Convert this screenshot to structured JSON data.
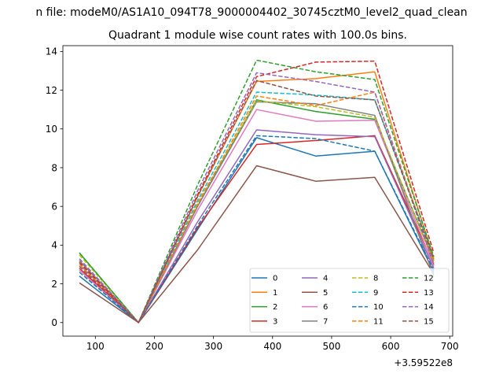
{
  "figure": {
    "suptitle": "n file: modeM0/AS1A10_094T78_9000004402_30745cztM0_level2_quad_clean",
    "background": "#ffffff"
  },
  "chart_data": {
    "type": "line",
    "title": "Quadrant 1 module wise count rates with 100.0s bins.",
    "xlabel": "",
    "ylabel": "",
    "x_offset_label": "+3.59522e8",
    "x": [
      73,
      173,
      273,
      373,
      473,
      573,
      673
    ],
    "xlim": [
      45,
      705
    ],
    "ylim": [
      -0.7,
      14.3
    ],
    "xticks": [
      100,
      200,
      300,
      400,
      500,
      600,
      700
    ],
    "xtick_labels": [
      "100",
      "200",
      "300",
      "400",
      "500",
      "600",
      "700"
    ],
    "yticks": [
      0,
      2,
      4,
      6,
      8,
      10,
      12,
      14
    ],
    "ytick_labels": [
      "0",
      "2",
      "4",
      "6",
      "8",
      "10",
      "12",
      "14"
    ],
    "grid": false,
    "legend": {
      "placement": "lower-right",
      "columns": 4
    },
    "series": [
      {
        "name": "0",
        "color": "#1f77b4",
        "dash": "solid",
        "values": [
          2.4,
          0.0,
          4.8,
          9.55,
          8.6,
          8.85,
          2.6
        ]
      },
      {
        "name": "1",
        "color": "#ff7f0e",
        "dash": "solid",
        "values": [
          3.2,
          0.0,
          6.5,
          12.45,
          12.6,
          12.95,
          3.3
        ]
      },
      {
        "name": "2",
        "color": "#2ca02c",
        "dash": "solid",
        "values": [
          3.6,
          0.0,
          6.0,
          11.5,
          10.9,
          10.5,
          3.2
        ]
      },
      {
        "name": "3",
        "color": "#d62728",
        "dash": "solid",
        "values": [
          2.8,
          0.0,
          4.9,
          9.2,
          9.4,
          9.65,
          3.0
        ]
      },
      {
        "name": "4",
        "color": "#9467bd",
        "dash": "solid",
        "values": [
          3.0,
          0.0,
          5.2,
          9.95,
          9.7,
          9.6,
          2.8
        ]
      },
      {
        "name": "5",
        "color": "#8c564b",
        "dash": "solid",
        "values": [
          2.05,
          0.0,
          3.75,
          8.1,
          7.3,
          7.5,
          2.5
        ]
      },
      {
        "name": "6",
        "color": "#e377c2",
        "dash": "solid",
        "values": [
          2.7,
          0.0,
          5.8,
          11.0,
          10.4,
          10.45,
          2.9
        ]
      },
      {
        "name": "7",
        "color": "#7f7f7f",
        "dash": "solid",
        "values": [
          3.2,
          0.0,
          6.0,
          11.4,
          11.3,
          10.7,
          2.4
        ]
      },
      {
        "name": "8",
        "color": "#bcbd22",
        "dash": "dashed",
        "values": [
          3.5,
          0.0,
          6.2,
          11.45,
          11.15,
          10.6,
          3.1
        ]
      },
      {
        "name": "9",
        "color": "#17becf",
        "dash": "dashed",
        "values": [
          3.1,
          0.0,
          6.3,
          11.9,
          11.75,
          11.5,
          3.4
        ]
      },
      {
        "name": "10",
        "color": "#1f77b4",
        "dash": "dashed",
        "values": [
          2.6,
          0.0,
          5.0,
          9.65,
          9.5,
          8.85,
          2.7
        ]
      },
      {
        "name": "11",
        "color": "#ff7f0e",
        "dash": "dashed",
        "values": [
          3.0,
          0.0,
          6.1,
          11.7,
          11.2,
          11.9,
          3.2
        ]
      },
      {
        "name": "12",
        "color": "#2ca02c",
        "dash": "dashed",
        "values": [
          3.6,
          0.0,
          7.1,
          13.55,
          12.95,
          12.55,
          3.4
        ]
      },
      {
        "name": "13",
        "color": "#d62728",
        "dash": "dashed",
        "values": [
          3.1,
          0.0,
          6.6,
          12.7,
          13.45,
          13.5,
          3.6
        ]
      },
      {
        "name": "14",
        "color": "#9467bd",
        "dash": "dashed",
        "values": [
          3.3,
          0.0,
          6.8,
          12.9,
          12.45,
          11.9,
          3.0
        ]
      },
      {
        "name": "15",
        "color": "#8c564b",
        "dash": "dashed",
        "values": [
          2.9,
          0.0,
          6.5,
          12.5,
          11.7,
          11.5,
          3.3
        ]
      }
    ]
  }
}
